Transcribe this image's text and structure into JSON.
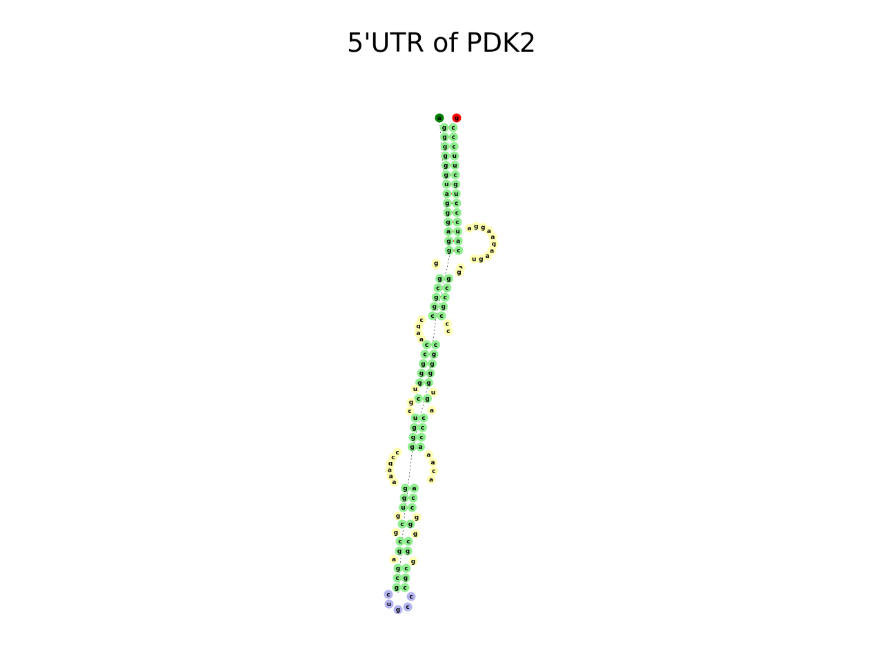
{
  "title": "5'UTR of PDK2",
  "colors": {
    "stem": "#90ee90",
    "loop": "#ffffb3",
    "hairpin": "#b3b3f0",
    "five_prime": "#008000",
    "three_prime": "#ff0000",
    "pair_line": "#ff0000",
    "backbone": "#000000"
  },
  "structure": {
    "five_prime_nt": "a",
    "three_prime_nt": "g",
    "main_stem_5": "gggggguagggagg",
    "main_stem_3": "cccuucgucccuac",
    "side_loop": "aggaagaagu",
    "bulge_a_5": "ag",
    "bulge_a_3": "ag",
    "stem_b_5": "gcggc",
    "stem_b_3": "cgccg",
    "loop_c_5": "cgaa",
    "loop_c_3": "cc",
    "stem_d_5": "ccggg",
    "stem_d_3": "ggggc",
    "loop_e_5": "u",
    "loop_e_3": "u",
    "stem_f_5": "c",
    "stem_f_3": "g",
    "loop_g_5": "gc",
    "loop_g_3": "a",
    "stem_h_5": "uggg",
    "stem_h_3": "accc",
    "loop_i_5": "ccgaaa",
    "loop_i_3": "aaca",
    "stem_j_5": "ggu",
    "stem_j_3": "cca",
    "loop_k_5": "g",
    "loop_k_3": "g",
    "stem_l_5": "c",
    "stem_l_3": "g",
    "loop_m_5": "g",
    "loop_m_3": "g",
    "stem_n_5": "cg",
    "stem_n_3": "gc",
    "loop_o_5": "a",
    "loop_o_3": "g",
    "stem_p_5": "gcg",
    "stem_p_3": "cgc",
    "hairpin_loop": "cugcc"
  }
}
